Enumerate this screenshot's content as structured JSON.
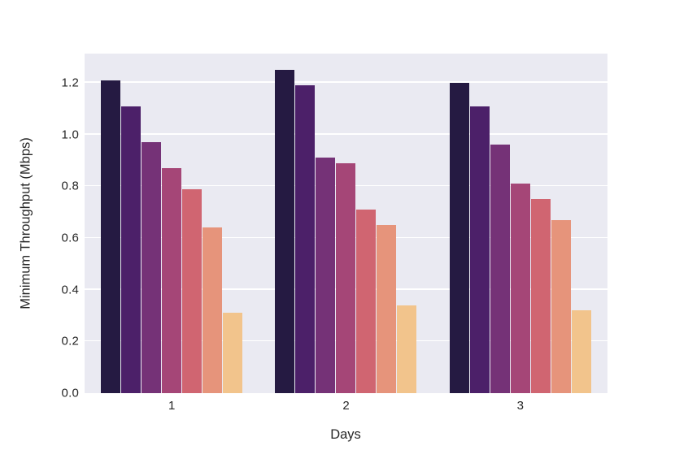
{
  "chart_data": {
    "type": "bar",
    "title": "",
    "xlabel": "Days",
    "ylabel": "Minimum Throughput (Mbps)",
    "categories": [
      "1",
      "2",
      "3"
    ],
    "series": [
      {
        "color": "#251a42",
        "values": [
          1.21,
          1.25,
          1.2
        ]
      },
      {
        "color": "#4c2069",
        "values": [
          1.11,
          1.19,
          1.11
        ]
      },
      {
        "color": "#753277",
        "values": [
          0.97,
          0.91,
          0.96
        ]
      },
      {
        "color": "#a54677",
        "values": [
          0.87,
          0.89,
          0.81
        ]
      },
      {
        "color": "#d06571",
        "values": [
          0.79,
          0.71,
          0.75
        ]
      },
      {
        "color": "#e6947b",
        "values": [
          0.64,
          0.65,
          0.67
        ]
      },
      {
        "color": "#f2c48c",
        "values": [
          0.31,
          0.34,
          0.32
        ]
      }
    ],
    "yticks": [
      "0.0",
      "0.2",
      "0.4",
      "0.6",
      "0.8",
      "1.0",
      "1.2"
    ],
    "ylim": [
      0,
      1.313
    ],
    "grid": true,
    "legend": false,
    "plot_bg": "#eaeaf2",
    "grid_color": "#ffffff",
    "text_color": "#262626"
  }
}
